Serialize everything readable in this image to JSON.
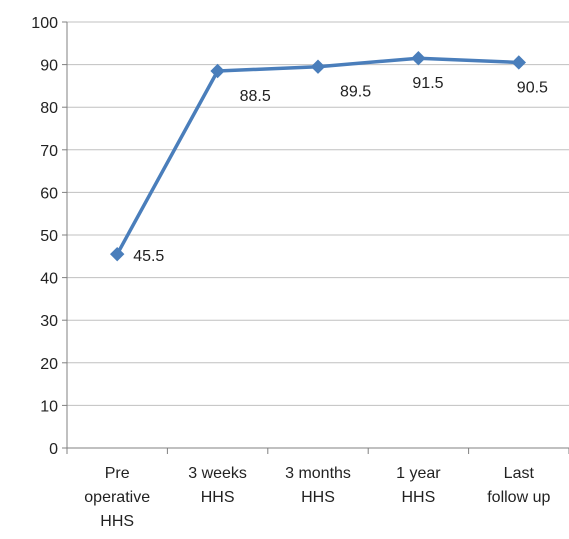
{
  "chart_data": {
    "type": "line",
    "title": "",
    "xlabel": "",
    "ylabel": "",
    "ylim": [
      0,
      100
    ],
    "yticks": [
      0,
      10,
      20,
      30,
      40,
      50,
      60,
      70,
      80,
      90,
      100
    ],
    "grid": true,
    "legend": "none",
    "categories": [
      [
        "Pre",
        "operative",
        "HHS"
      ],
      [
        "3 weeks",
        "HHS"
      ],
      [
        "3 months",
        "HHS"
      ],
      [
        "1 year",
        "HHS"
      ],
      [
        "Last",
        "follow up"
      ]
    ],
    "series": [
      {
        "values": [
          45.5,
          88.5,
          89.5,
          91.5,
          90.5
        ],
        "data_labels": [
          "45.5",
          "88.5",
          "89.5",
          "91.5",
          "90.5"
        ],
        "color": "#4a7ebb",
        "marker": "diamond"
      }
    ]
  },
  "colors": {
    "grid": "#c0c0c0",
    "axis": "#808080",
    "text": "#222222"
  }
}
